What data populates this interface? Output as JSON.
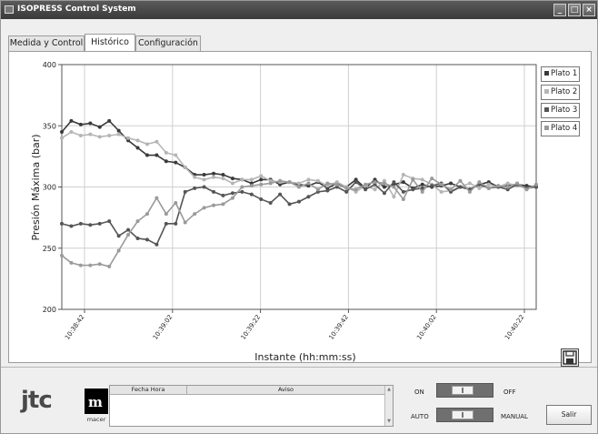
{
  "window": {
    "title": "ISOPRESS Control System"
  },
  "tabs": [
    {
      "label": "Medida y Control",
      "active": false
    },
    {
      "label": "Histórico",
      "active": true
    },
    {
      "label": "Configuración",
      "active": false
    }
  ],
  "chart_data": {
    "type": "line",
    "ylabel": "Presión Máxima (bar)",
    "xlabel": "Instante (hh:mm:ss)",
    "ylim": [
      200,
      400
    ],
    "yticks": [
      200,
      250,
      300,
      350,
      400
    ],
    "xticks": [
      "10:38:42",
      "10:39:02",
      "10:39:22",
      "10:39:42",
      "10:40:02",
      "10:40:22"
    ],
    "grid": true,
    "legend_position": "right",
    "x": [
      0,
      1,
      2,
      3,
      4,
      5,
      6,
      7,
      8,
      9,
      10,
      11,
      12,
      13,
      14,
      15,
      16,
      17,
      18,
      19,
      20,
      21,
      22,
      23,
      24,
      25,
      26,
      27,
      28,
      29,
      30,
      31,
      32,
      33,
      34,
      35,
      36,
      37,
      38,
      39,
      40,
      41,
      42,
      43,
      44,
      45,
      46,
      47,
      48,
      49,
      50
    ],
    "series": [
      {
        "name": "Plato 1",
        "color": "#3a3a3a",
        "values": [
          345,
          354,
          351,
          352,
          349,
          354,
          346,
          338,
          332,
          326,
          326,
          321,
          320,
          316,
          310,
          310,
          311,
          310,
          307,
          306,
          303,
          306,
          306,
          302,
          304,
          302,
          301,
          304,
          299,
          303,
          300,
          306,
          299,
          306,
          300,
          302,
          304,
          299,
          302,
          300,
          301,
          303,
          300,
          298,
          302,
          304,
          300,
          301,
          302,
          301,
          300
        ]
      },
      {
        "name": "Plato 2",
        "color": "#b5b5b5",
        "values": [
          340,
          345,
          342,
          343,
          341,
          342,
          343,
          340,
          338,
          335,
          337,
          328,
          326,
          316,
          308,
          306,
          308,
          307,
          303,
          306,
          306,
          309,
          305,
          304,
          304,
          303,
          306,
          305,
          301,
          304,
          300,
          296,
          301,
          298,
          305,
          292,
          310,
          307,
          306,
          302,
          296,
          297,
          300,
          303,
          299,
          302,
          300,
          303,
          301,
          299,
          301
        ]
      },
      {
        "name": "Plato 3",
        "color": "#555555",
        "values": [
          270,
          268,
          270,
          269,
          270,
          272,
          260,
          265,
          258,
          257,
          253,
          270,
          270,
          296,
          299,
          300,
          296,
          293,
          295,
          296,
          294,
          290,
          287,
          294,
          286,
          288,
          292,
          296,
          297,
          300,
          296,
          304,
          298,
          302,
          295,
          304,
          296,
          298,
          299,
          301,
          303,
          296,
          300,
          298,
          302,
          299,
          300,
          298,
          302,
          299,
          300
        ]
      },
      {
        "name": "Plato 4",
        "color": "#9a9a9a",
        "values": [
          244,
          238,
          236,
          236,
          237,
          235,
          248,
          261,
          272,
          278,
          291,
          278,
          287,
          271,
          278,
          283,
          285,
          286,
          291,
          300,
          301,
          302,
          303,
          305,
          304,
          300,
          303,
          298,
          303,
          302,
          299,
          298,
          302,
          304,
          303,
          300,
          290,
          306,
          296,
          307,
          302,
          298,
          305,
          296,
          304,
          299,
          301,
          300,
          303,
          298,
          302
        ]
      }
    ]
  },
  "alarms_table": {
    "columns": [
      "Fecha Hora",
      "Aviso"
    ]
  },
  "controls": {
    "on_label": "ON",
    "off_label": "OFF",
    "auto_label": "AUTO",
    "manual_label": "MANUAL",
    "exit_label": "Salir"
  },
  "logos": {
    "jtc": "jtc",
    "macer_mark": "m",
    "macer": "macer"
  },
  "icons": {
    "save": "save-icon",
    "minimize": "minimize-icon",
    "maximize": "maximize-icon",
    "close": "close-icon"
  }
}
